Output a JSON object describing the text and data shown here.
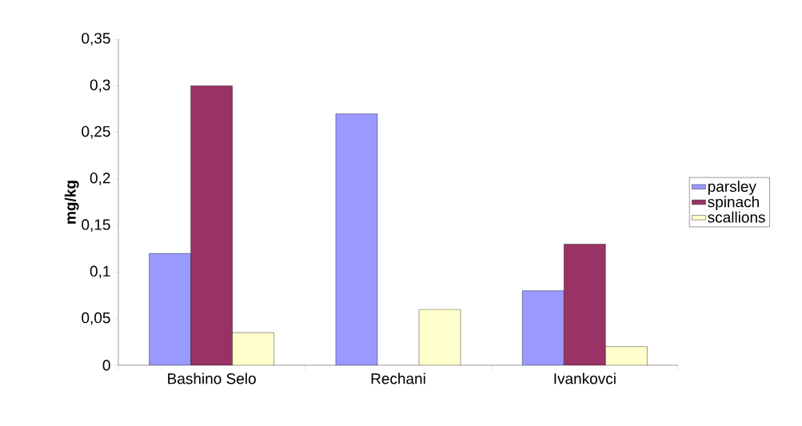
{
  "chart_data": {
    "type": "bar",
    "ylabel": "mg/kg",
    "categories": [
      "Bashino Selo",
      "Rechani",
      "Ivankovci"
    ],
    "series": [
      {
        "name": "parsley",
        "color": "#9999ff",
        "values": [
          0.12,
          0.27,
          0.08
        ]
      },
      {
        "name": "spinach",
        "color": "#993366",
        "values": [
          0.3,
          null,
          0.13
        ]
      },
      {
        "name": "scallions",
        "color": "#ffffcc",
        "values": [
          0.035,
          0.06,
          0.02
        ]
      }
    ],
    "ylim": [
      0,
      0.35
    ],
    "yticks": [
      0,
      {
        "value": 0.05,
        "label": "0,05"
      },
      {
        "value": 0.1,
        "label": "0,1"
      },
      {
        "value": 0.15,
        "label": "0,15"
      },
      {
        "value": 0.2,
        "label": "0,2"
      },
      {
        "value": 0.25,
        "label": "0,25"
      },
      {
        "value": 0.3,
        "label": "0,3"
      },
      {
        "value": 0.35,
        "label": "0,35"
      }
    ],
    "legend": "right",
    "grid": false
  }
}
